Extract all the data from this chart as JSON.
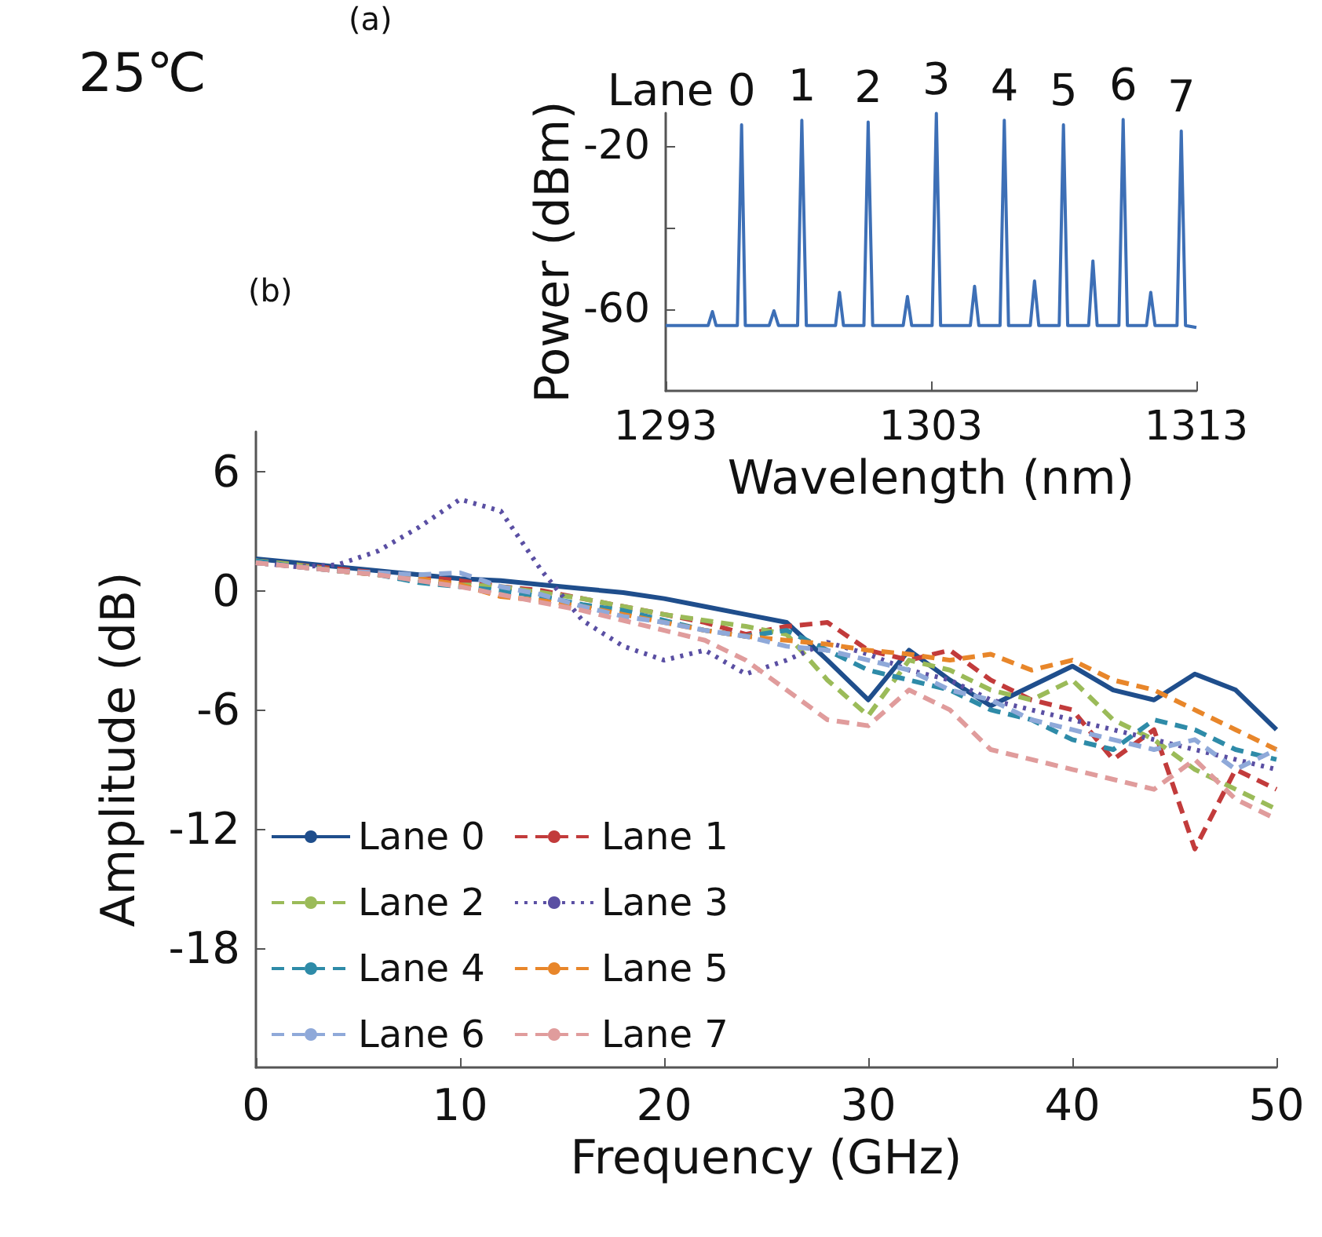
{
  "chart_data": [
    {
      "type": "line",
      "xlabel": "Wavelength (nm)",
      "ylabel": "Power (dBm)",
      "annotations": [
        "(a)",
        {
          "text": "Lane 0",
          "x": 1295.86,
          "y": -14.9
        },
        {
          "text": "1",
          "x": 1298.13,
          "y": -13.8
        },
        {
          "text": "2",
          "x": 1300.63,
          "y": -14.2
        },
        {
          "text": "3",
          "x": 1303.2,
          "y": -12.1
        },
        {
          "text": "4",
          "x": 1305.76,
          "y": -13.8
        },
        {
          "text": "5",
          "x": 1307.99,
          "y": -14.9
        },
        {
          "text": "6",
          "x": 1310.24,
          "y": -13.6
        },
        {
          "text": "7",
          "x": 1312.43,
          "y": -16.4
        }
      ],
      "x": [
        1293,
        1294.6,
        1294.76,
        1294.9,
        1295.7,
        1295.86,
        1296.0,
        1296.9,
        1297.08,
        1297.25,
        1297.97,
        1298.13,
        1298.3,
        1299.4,
        1299.55,
        1299.7,
        1300.47,
        1300.63,
        1300.8,
        1301.95,
        1302.11,
        1302.27,
        1303.04,
        1303.2,
        1303.36,
        1304.48,
        1304.64,
        1304.8,
        1305.6,
        1305.76,
        1305.92,
        1306.74,
        1306.9,
        1307.06,
        1307.83,
        1307.99,
        1308.15,
        1308.94,
        1309.1,
        1309.26,
        1310.08,
        1310.24,
        1310.4,
        1311.12,
        1311.28,
        1311.44,
        1312.27,
        1312.43,
        1312.59,
        1313
      ],
      "values": [
        -64,
        -64,
        -60.6,
        -64,
        -64,
        -14.9,
        -64,
        -64,
        -60.4,
        -64,
        -64,
        -13.8,
        -64,
        -64,
        -55.9,
        -64,
        -64,
        -14.2,
        -64,
        -64,
        -56.9,
        -64,
        -64,
        -12.1,
        -64,
        -64,
        -54.4,
        -64,
        -64,
        -13.8,
        -64,
        -64,
        -53.1,
        -64,
        -64,
        -14.9,
        -64,
        -64,
        -48.2,
        -64,
        -64,
        -13.6,
        -64,
        -64,
        -55.9,
        -64,
        -64,
        -16.4,
        -64,
        -64.5
      ],
      "color": "#3d6fb6",
      "xlim": [
        1293,
        1313
      ],
      "xticks": [
        1293,
        1303,
        1313
      ],
      "ylim": [
        -80,
        -12
      ],
      "yticks": [
        -60,
        {
          "value": -40,
          "label": null
        },
        -20
      ]
    },
    {
      "type": "line",
      "xlabel": "Frequency (GHz)",
      "ylabel": "Amplitude (dB)",
      "annotations": [
        "(b)",
        "25℃"
      ],
      "legend": "bottom left",
      "x": [
        0,
        2,
        4,
        6,
        8,
        10,
        12,
        14,
        16,
        18,
        20,
        22,
        24,
        26,
        28,
        30,
        32,
        34,
        36,
        38,
        40,
        42,
        44,
        46,
        48,
        50
      ],
      "series": [
        {
          "name": "Lane 0",
          "color": "#1f4e8c",
          "line_style": "solid",
          "values": [
            1.6,
            1.4,
            1.2,
            1.0,
            0.8,
            0.6,
            0.5,
            0.3,
            0.1,
            -0.1,
            -0.4,
            -0.8,
            -1.2,
            -1.6,
            -3.5,
            -5.5,
            -3.0,
            -4.5,
            -5.8,
            -4.8,
            -3.8,
            -5.0,
            -5.5,
            -4.2,
            -5.0,
            -7.0
          ]
        },
        {
          "name": "Lane 1",
          "color": "#c23b3b",
          "line_style": "dashed",
          "values": [
            1.5,
            1.3,
            1.1,
            0.9,
            0.7,
            0.5,
            0.2,
            0,
            -0.4,
            -0.8,
            -1.2,
            -1.6,
            -2.2,
            -1.8,
            -1.6,
            -3.0,
            -3.5,
            -3.0,
            -4.5,
            -5.5,
            -6.0,
            -8.5,
            -7.0,
            -13.0,
            -9.0,
            -10.0
          ]
        },
        {
          "name": "Lane 2",
          "color": "#9bbb59",
          "line_style": "dashed",
          "values": [
            1.5,
            1.3,
            1.0,
            0.8,
            0.6,
            0.3,
            0.2,
            -0.1,
            -0.4,
            -0.8,
            -1.2,
            -1.5,
            -1.8,
            -2.2,
            -4.5,
            -6.3,
            -3.5,
            -4.0,
            -5.0,
            -5.5,
            -4.5,
            -6.5,
            -7.5,
            -9.0,
            -10.0,
            -11.0
          ]
        },
        {
          "name": "Lane 3",
          "color": "#5a4fa3",
          "line_style": "dotted",
          "values": [
            1.4,
            1.2,
            1.3,
            2.0,
            3.2,
            4.6,
            4.0,
            1.0,
            -1.5,
            -2.8,
            -3.5,
            -3.0,
            -4.2,
            -3.5,
            -2.6,
            -3.2,
            -4.0,
            -4.5,
            -5.5,
            -6.0,
            -6.5,
            -7.0,
            -7.5,
            -8.0,
            -8.5,
            -9.0
          ]
        },
        {
          "name": "Lane 4",
          "color": "#2e8ba8",
          "line_style": "dashed",
          "values": [
            1.5,
            1.2,
            1.0,
            0.8,
            0.4,
            0.2,
            0,
            -0.3,
            -0.7,
            -1.0,
            -1.5,
            -2.0,
            -2.3,
            -2.0,
            -3.0,
            -4.0,
            -4.5,
            -5.0,
            -6.0,
            -6.5,
            -7.5,
            -8.0,
            -6.5,
            -7.0,
            -8.0,
            -8.5
          ]
        },
        {
          "name": "Lane 5",
          "color": "#e8862a",
          "line_style": "dashed",
          "values": [
            1.4,
            1.2,
            1.0,
            0.8,
            0.6,
            0.3,
            -0.3,
            -0.5,
            -0.8,
            -1.2,
            -1.6,
            -2.0,
            -2.3,
            -2.5,
            -2.7,
            -3.0,
            -3.2,
            -3.5,
            -3.2,
            -4.0,
            -3.5,
            -4.5,
            -5.0,
            -6.0,
            -7.0,
            -8.0
          ]
        },
        {
          "name": "Lane 6",
          "color": "#8fa9d9",
          "line_style": "dashed",
          "values": [
            1.4,
            1.2,
            1.0,
            0.9,
            0.8,
            0.9,
            0.2,
            -0.2,
            -0.8,
            -1.3,
            -1.6,
            -2.0,
            -2.3,
            -2.8,
            -3.0,
            -3.5,
            -4.0,
            -5.0,
            -5.5,
            -6.5,
            -7.0,
            -7.5,
            -8.0,
            -7.5,
            -9.0,
            -8.0
          ]
        },
        {
          "name": "Lane 7",
          "color": "#e09c9c",
          "line_style": "dashed",
          "values": [
            1.4,
            1.2,
            1.0,
            0.8,
            0.5,
            0.2,
            -0.2,
            -0.6,
            -1.0,
            -1.5,
            -2.0,
            -2.5,
            -3.5,
            -5.0,
            -6.5,
            -6.8,
            -5.0,
            -6.0,
            -8.0,
            -8.5,
            -9.0,
            -9.5,
            -10.0,
            -8.5,
            -10.5,
            -11.5
          ]
        }
      ],
      "xlim": [
        0,
        50
      ],
      "xticks": [
        0,
        10,
        20,
        30,
        40,
        50
      ],
      "ylim": [
        -24,
        8
      ],
      "yticks": [
        -18,
        -12,
        -6,
        0,
        6
      ]
    }
  ]
}
